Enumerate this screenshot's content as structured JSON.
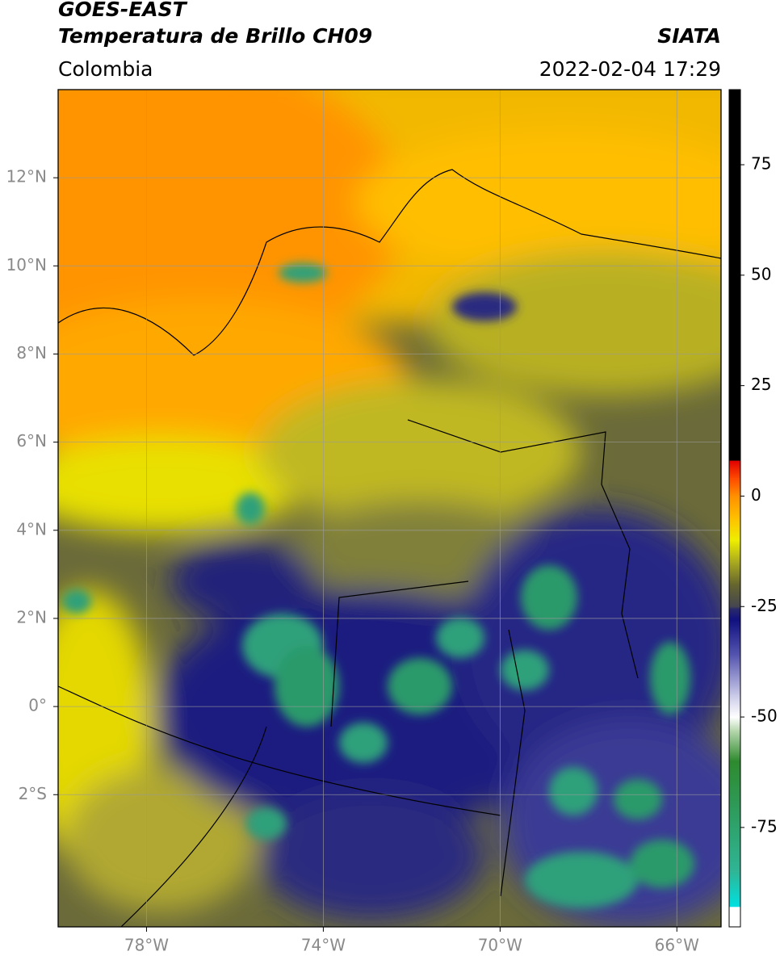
{
  "chart_data": {
    "type": "map",
    "title": "GOES-EAST",
    "subtitle": "Temperatura de Brillo CH09",
    "source": "SIATA",
    "region": "Colombia",
    "datetime": "2022-02-04 17:29",
    "xlim": [
      -80,
      -65
    ],
    "xticks": [
      {
        "value": -78,
        "label": "78°W"
      },
      {
        "value": -74,
        "label": "74°W"
      },
      {
        "value": -70,
        "label": "70°W"
      },
      {
        "value": -66,
        "label": "66°W"
      }
    ],
    "ylim": [
      -5,
      14
    ],
    "yticks": [
      {
        "value": 12,
        "label": "12°N"
      },
      {
        "value": 10,
        "label": "10°N"
      },
      {
        "value": 8,
        "label": "8°N"
      },
      {
        "value": 6,
        "label": "6°N"
      },
      {
        "value": 4,
        "label": "4°N"
      },
      {
        "value": 2,
        "label": "2°N"
      },
      {
        "value": 0,
        "label": "0°"
      },
      {
        "value": -2,
        "label": "2°S"
      }
    ],
    "grid": true,
    "colorbar": {
      "lim": [
        -97.5,
        92
      ],
      "ticks": [
        75,
        50,
        25,
        0,
        -25,
        -50,
        -75
      ],
      "colormap": [
        {
          "value": -97.5,
          "color": "#ffffff"
        },
        {
          "value": -93,
          "color": "#ffffff"
        },
        {
          "value": -92.9,
          "color": "#00e0e0"
        },
        {
          "value": -85,
          "color": "#2fb596"
        },
        {
          "value": -70,
          "color": "#2e9a58"
        },
        {
          "value": -60,
          "color": "#2e8a2e"
        },
        {
          "value": -53,
          "color": "#b8d8b0"
        },
        {
          "value": -50,
          "color": "#ffffff"
        },
        {
          "value": -45,
          "color": "#c8c8e8"
        },
        {
          "value": -36,
          "color": "#5555b0"
        },
        {
          "value": -28,
          "color": "#101080"
        },
        {
          "value": -25.5,
          "color": "#2a2a6a"
        },
        {
          "value": -25,
          "color": "#454550"
        },
        {
          "value": -20,
          "color": "#66662e"
        },
        {
          "value": -15,
          "color": "#a8a820"
        },
        {
          "value": -10,
          "color": "#eeee00"
        },
        {
          "value": -5,
          "color": "#ffc000"
        },
        {
          "value": 0,
          "color": "#ff9000"
        },
        {
          "value": 4,
          "color": "#ff4a00"
        },
        {
          "value": 8,
          "color": "#e00000"
        },
        {
          "value": 8.1,
          "color": "#000000"
        },
        {
          "value": 92,
          "color": "#000000"
        }
      ]
    }
  }
}
